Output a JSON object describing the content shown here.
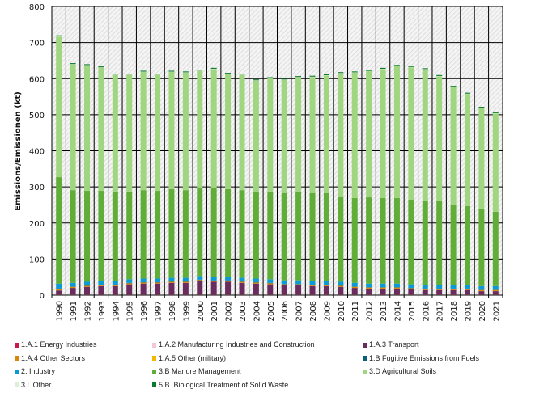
{
  "chart_data": {
    "type": "bar",
    "stacked": true,
    "ylabel": "Emissions/Emissionen (kt)",
    "ylim": [
      0,
      800
    ],
    "yticks": [
      "0",
      "100",
      "200",
      "300",
      "400",
      "500",
      "600",
      "700",
      "800"
    ],
    "grid": true,
    "legend_position": "bottom",
    "categories": [
      "1990",
      "1991",
      "1992",
      "1993",
      "1994",
      "1995",
      "1996",
      "1997",
      "1998",
      "1999",
      "2000",
      "2001",
      "2002",
      "2003",
      "2004",
      "2005",
      "2006",
      "2007",
      "2008",
      "2009",
      "2010",
      "2011",
      "2012",
      "2013",
      "2014",
      "2015",
      "2016",
      "2017",
      "2018",
      "2019",
      "2020",
      "2021"
    ],
    "series": [
      {
        "name": "1.A.1 Energy Industries",
        "color": "#c8194b",
        "values": [
          2,
          2,
          2,
          2,
          2,
          2,
          2,
          2,
          2,
          2,
          2,
          2,
          2,
          2,
          2,
          2,
          2,
          2,
          2,
          2,
          2,
          2,
          2,
          2,
          2,
          2,
          2,
          2,
          2,
          2,
          2,
          2
        ]
      },
      {
        "name": "1.A.2 Manufacturing Industries and Construction",
        "color": "#f5c6d8",
        "values": [
          1,
          1,
          1,
          1,
          1,
          1,
          1,
          1,
          1,
          1,
          1,
          1,
          1,
          1,
          1,
          1,
          1,
          1,
          1,
          1,
          1,
          1,
          1,
          1,
          1,
          1,
          1,
          1,
          1,
          1,
          1,
          1
        ]
      },
      {
        "name": "1.A.3 Transport",
        "color": "#6a2c5e",
        "values": [
          10,
          17,
          20,
          22,
          22,
          27,
          29,
          29,
          31,
          31,
          36,
          34,
          34,
          31,
          29,
          27,
          24,
          24,
          22,
          22,
          20,
          17,
          15,
          15,
          15,
          13,
          11,
          11,
          11,
          11,
          8,
          8
        ]
      },
      {
        "name": "1.A.4 Other Sectors",
        "color": "#d9860b",
        "values": [
          3,
          3,
          3,
          3,
          3,
          3,
          3,
          3,
          3,
          3,
          3,
          3,
          3,
          3,
          3,
          3,
          3,
          3,
          3,
          3,
          3,
          3,
          3,
          3,
          3,
          3,
          3,
          3,
          3,
          3,
          3,
          3
        ]
      },
      {
        "name": "1.A.5 Other (military)",
        "color": "#f5b800",
        "values": [
          0.5,
          0.5,
          0.5,
          0.5,
          0.5,
          0.5,
          0.5,
          0.5,
          0.5,
          0.5,
          0.5,
          0.5,
          0.5,
          0.5,
          0.5,
          0.5,
          0.5,
          0.5,
          0.5,
          0.5,
          0.5,
          0.5,
          0.5,
          0.5,
          0.5,
          0.5,
          0.5,
          0.5,
          0.5,
          0.5,
          0.5,
          0.5
        ]
      },
      {
        "name": "1.B Fugitive Emissions from Fuels",
        "color": "#0b5e7c",
        "values": [
          0.5,
          0.5,
          0.5,
          0.5,
          0.5,
          0.5,
          0.5,
          0.5,
          0.5,
          0.5,
          0.5,
          0.5,
          0.5,
          0.5,
          0.5,
          0.5,
          0.5,
          0.5,
          0.5,
          0.5,
          0.5,
          0.5,
          0.5,
          0.5,
          0.5,
          0.5,
          0.5,
          0.5,
          0.5,
          0.5,
          0.5,
          0.5
        ]
      },
      {
        "name": "2. Industry",
        "color": "#0a9bd6",
        "values": [
          15,
          10,
          10,
          10,
          10,
          10,
          10,
          10,
          10,
          10,
          10,
          10,
          10,
          10,
          10,
          10,
          10,
          10,
          10,
          10,
          10,
          10,
          10,
          10,
          10,
          10,
          10,
          10,
          10,
          10,
          10,
          10
        ]
      },
      {
        "name": "3.B Manure Management",
        "color": "#60ae38",
        "values": [
          295,
          257,
          252,
          250,
          248,
          243,
          245,
          243,
          246,
          243,
          243,
          247,
          243,
          243,
          239,
          243,
          242,
          244,
          244,
          244,
          237,
          235,
          239,
          237,
          237,
          235,
          232,
          232,
          223,
          219,
          215,
          206
        ]
      },
      {
        "name": "3.D Agricultural Soils",
        "color": "#9fd67f",
        "values": [
          390,
          349,
          348,
          342,
          324,
          324,
          328,
          322,
          325,
          326,
          326,
          329,
          319,
          320,
          310,
          314,
          314,
          319,
          322,
          326,
          341,
          348,
          350,
          358,
          366,
          367,
          366,
          347,
          326,
          311,
          279,
          273
        ]
      },
      {
        "name": "3.L Other",
        "color": "#ddf0d3",
        "values": [
          0.5,
          0.5,
          0.5,
          0.5,
          0.5,
          0.5,
          0.5,
          0.5,
          0.5,
          0.5,
          0.5,
          0.5,
          0.5,
          0.5,
          0.5,
          0.5,
          0.5,
          0.5,
          0.5,
          0.5,
          0.5,
          0.5,
          0.5,
          0.5,
          0.5,
          0.5,
          0.5,
          0.5,
          0.5,
          0.5,
          0.5,
          0.5
        ]
      },
      {
        "name": "5.B. Biological Treatment of Solid Waste",
        "color": "#0c7a2e",
        "values": [
          2.5,
          2.5,
          2.5,
          2.5,
          2.5,
          2.5,
          2.5,
          2.5,
          2.5,
          2.5,
          2.5,
          2.5,
          2.5,
          2.5,
          2.5,
          2.5,
          2.5,
          2.5,
          2.5,
          2.5,
          2.5,
          2.5,
          2.5,
          2.5,
          2.5,
          2.5,
          2.5,
          2.5,
          2.5,
          2.5,
          2.5,
          2.5
        ]
      }
    ]
  }
}
